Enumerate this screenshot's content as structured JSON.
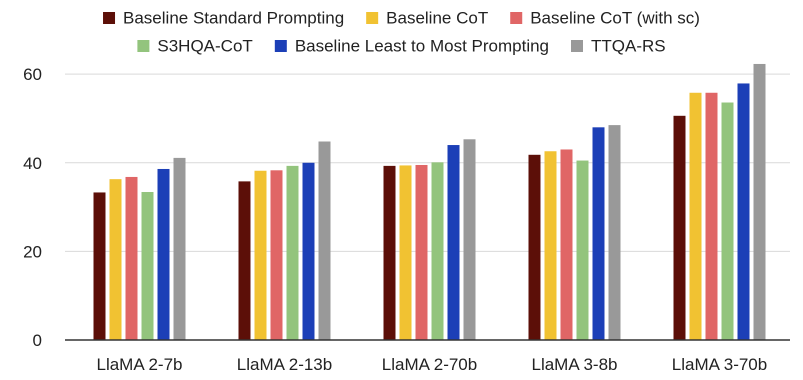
{
  "chart_data": {
    "type": "bar",
    "title": "",
    "xlabel": "",
    "ylabel": "",
    "categories": [
      "LlaMA 2-7b",
      "LlaMA 2-13b",
      "LlaMA 2-70b",
      "LlaMA 3-8b",
      "LlaMA 3-70b"
    ],
    "ylim": [
      0,
      65
    ],
    "yticks": [
      0,
      20,
      40,
      60
    ],
    "grid": true,
    "legend_position": "top",
    "series": [
      {
        "name": "Baseline Standard Prompting",
        "color": "#5c0f08",
        "values": [
          33.3,
          35.8,
          39.3,
          41.8,
          50.6
        ]
      },
      {
        "name": "Baseline CoT",
        "color": "#f1c232",
        "values": [
          36.3,
          38.2,
          39.4,
          42.6,
          55.8
        ]
      },
      {
        "name": "Baseline CoT (with sc)",
        "color": "#e06666",
        "values": [
          36.8,
          38.3,
          39.5,
          43.0,
          55.8
        ]
      },
      {
        "name": "S3HQA-CoT",
        "color": "#93c47d",
        "values": [
          33.4,
          39.3,
          40.1,
          40.5,
          53.6
        ]
      },
      {
        "name": "Baseline Least to Most Prompting",
        "color": "#1c3fb7",
        "values": [
          38.6,
          40.0,
          44.0,
          48.0,
          57.9
        ]
      },
      {
        "name": "TTQA-RS",
        "color": "#999999",
        "values": [
          41.1,
          44.8,
          45.3,
          48.5,
          62.3
        ]
      }
    ]
  }
}
